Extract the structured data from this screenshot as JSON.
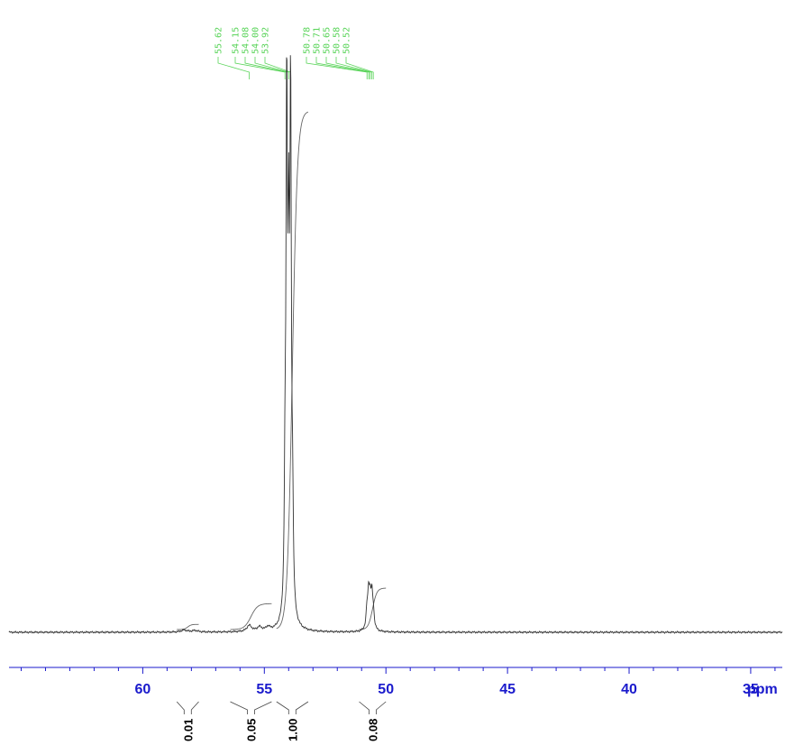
{
  "chart_data": {
    "type": "line",
    "x_unit_label": "ppm",
    "xlim": [
      65.5,
      33.7
    ],
    "x_ticks_major": [
      60,
      55,
      50,
      45,
      40,
      35
    ],
    "x_minor_step": 1,
    "grid": false,
    "colors": {
      "spectrum": "#333333",
      "axis": "#1a1acc",
      "peak_labels": "#5ad45a",
      "integrals": "#666666"
    },
    "peak_labels": [
      "55.62",
      "54.15",
      "54.08",
      "54.00",
      "53.92",
      "50.78",
      "50.71",
      "50.65",
      "50.58",
      "50.52"
    ],
    "peaks": [
      {
        "ppm": 58.3,
        "height": 0.004,
        "width": 0.15
      },
      {
        "ppm": 57.85,
        "height": 0.003,
        "width": 0.15
      },
      {
        "ppm": 55.62,
        "height": 0.012,
        "width": 0.12
      },
      {
        "ppm": 55.2,
        "height": 0.008,
        "width": 0.12
      },
      {
        "ppm": 54.85,
        "height": 0.007,
        "width": 0.1
      },
      {
        "ppm": 54.15,
        "height": 0.22,
        "width": 0.035
      },
      {
        "ppm": 54.08,
        "height": 0.98,
        "width": 0.035
      },
      {
        "ppm": 54.0,
        "height": 0.6,
        "width": 0.035
      },
      {
        "ppm": 53.92,
        "height": 0.98,
        "width": 0.035
      },
      {
        "ppm": 53.84,
        "height": 0.18,
        "width": 0.035
      },
      {
        "ppm": 50.78,
        "height": 0.035,
        "width": 0.045
      },
      {
        "ppm": 50.71,
        "height": 0.065,
        "width": 0.045
      },
      {
        "ppm": 50.65,
        "height": 0.045,
        "width": 0.045
      },
      {
        "ppm": 50.58,
        "height": 0.06,
        "width": 0.045
      },
      {
        "ppm": 50.52,
        "height": 0.03,
        "width": 0.045
      }
    ],
    "integrals": [
      {
        "label": "0.01",
        "from": 58.6,
        "to": 57.7,
        "value": 0.01
      },
      {
        "label": "0.05",
        "from": 56.4,
        "to": 54.7,
        "value": 0.05
      },
      {
        "label": "1.00",
        "from": 54.5,
        "to": 53.2,
        "value": 1.0
      },
      {
        "label": "0.08",
        "from": 51.1,
        "to": 50.0,
        "value": 0.08
      }
    ]
  }
}
